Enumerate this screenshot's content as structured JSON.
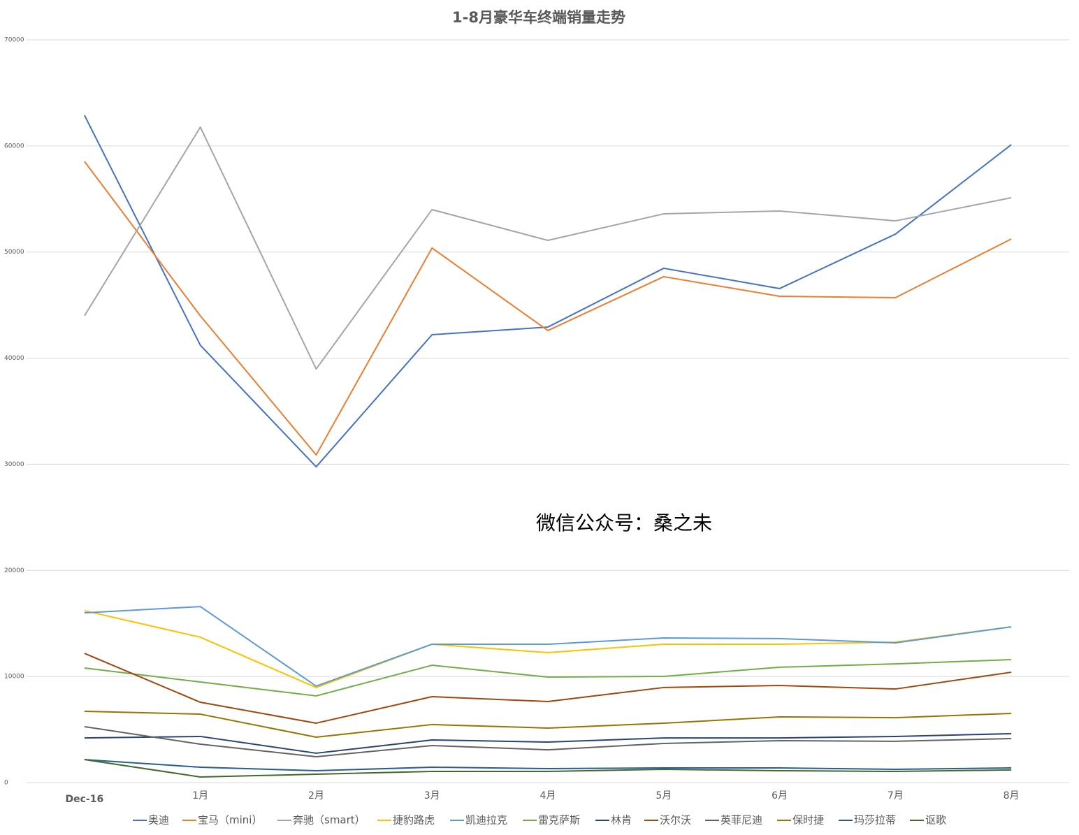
{
  "chart_data": {
    "type": "line",
    "title": "1-8月豪华车终端销量走势",
    "annotation": "微信公众号：桑之未",
    "categories": [
      "Dec-16",
      "1月",
      "2月",
      "3月",
      "4月",
      "5月",
      "6月",
      "7月",
      "8月"
    ],
    "ylim": [
      0,
      70000
    ],
    "yticks": [
      0,
      10000,
      20000,
      30000,
      40000,
      50000,
      60000,
      70000
    ],
    "grid": true,
    "legend": "bottom",
    "series": [
      {
        "name": "奥迪",
        "color": "#4472c4",
        "values": [
          62890,
          41220,
          29760,
          42210,
          42930,
          48470,
          46560,
          51690,
          60120
        ]
      },
      {
        "name": "宝马（mini）",
        "color": "#ed7d31",
        "values": [
          58540,
          43990,
          30880,
          50380,
          42600,
          47680,
          45830,
          45700,
          51230
        ]
      },
      {
        "name": "奔驰（smart）",
        "color": "#a5a5a5",
        "values": [
          43990,
          61770,
          38980,
          54000,
          51100,
          53600,
          53870,
          52940,
          55120
        ]
      },
      {
        "name": "捷豹路虎",
        "color": "#ffc000",
        "values": [
          16200,
          13700,
          8960,
          13040,
          12250,
          13040,
          13040,
          13240,
          14680
        ]
      },
      {
        "name": "凯迪拉克",
        "color": "#5b9bd5",
        "values": [
          16000,
          16590,
          9090,
          13040,
          13040,
          13630,
          13570,
          13170,
          14680
        ]
      },
      {
        "name": "雷克萨斯",
        "color": "#70ad47",
        "values": [
          10800,
          9480,
          8170,
          11060,
          9940,
          10010,
          10870,
          11190,
          11590
        ]
      },
      {
        "name": "林肯",
        "color": "#264478",
        "values": [
          4210,
          4350,
          2770,
          4020,
          3820,
          4210,
          4210,
          4350,
          4610
        ]
      },
      {
        "name": "沃尔沃",
        "color": "#9e480e",
        "values": [
          12180,
          7570,
          5600,
          8100,
          7640,
          8960,
          9150,
          8820,
          10400
        ]
      },
      {
        "name": "英菲尼迪",
        "color": "#636363",
        "values": [
          5270,
          3620,
          2440,
          3490,
          3090,
          3690,
          3950,
          3890,
          4150
        ]
      },
      {
        "name": "保时捷",
        "color": "#997300",
        "values": [
          6720,
          6450,
          4280,
          5470,
          5140,
          5600,
          6190,
          6120,
          6520
        ]
      },
      {
        "name": "玛莎拉蒂",
        "color": "#255e91",
        "values": [
          2170,
          1450,
          1120,
          1450,
          1320,
          1380,
          1380,
          1250,
          1380
        ]
      },
      {
        "name": "讴歌",
        "color": "#43682b",
        "values": [
          2170,
          530,
          790,
          1050,
          1050,
          1250,
          1120,
          1050,
          1190
        ]
      }
    ]
  }
}
